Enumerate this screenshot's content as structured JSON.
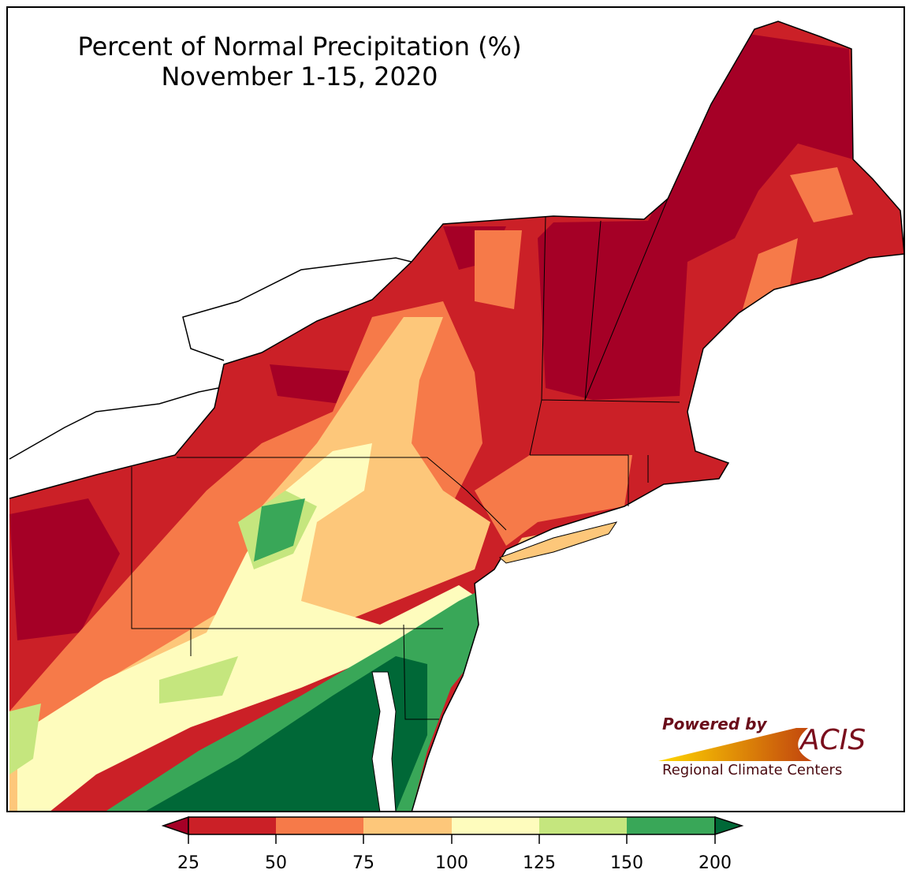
{
  "title": {
    "line1": "Percent of Normal Precipitation (%)",
    "line2": "November 1-15, 2020"
  },
  "logo": {
    "powered_by": "Powered by",
    "brand": "ACIS",
    "subtitle": "Regional Climate Centers"
  },
  "legend": {
    "ticks": [
      "25",
      "50",
      "75",
      "100",
      "125",
      "150",
      "200"
    ],
    "colors": {
      "below": "#a50026",
      "c25_50": "#cb2027",
      "c50_75": "#f67a49",
      "c75_100": "#fdc77a",
      "c100_125": "#fefcbd",
      "c125_150": "#c5e67e",
      "c150_200": "#39a758",
      "above": "#006837"
    }
  }
}
